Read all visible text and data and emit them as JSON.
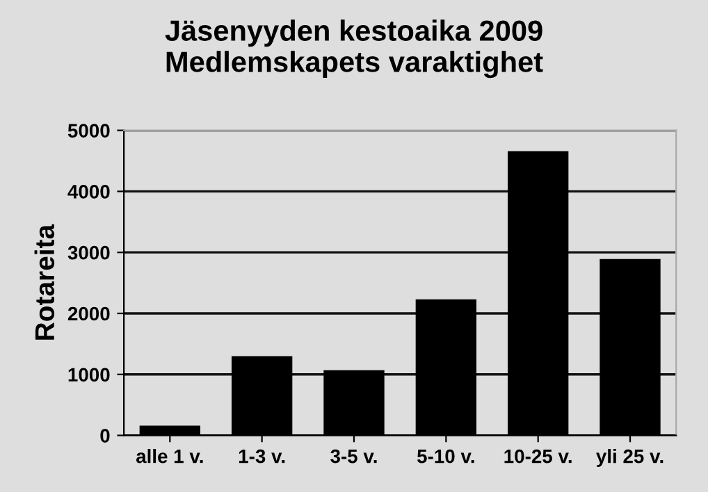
{
  "chart_data": {
    "type": "bar",
    "title": "Jäsenyyden kestoaika 2009\nMedlemskapets varaktighet",
    "ylabel": "Rotareita",
    "categories": [
      "alle 1 v.",
      "1-3 v.",
      "3-5 v.",
      "5-10 v.",
      "10-25 v.",
      "yli 25 v."
    ],
    "values": [
      160,
      1300,
      1070,
      2230,
      4660,
      2890
    ],
    "color": "#000000",
    "ylim": [
      0,
      5000
    ],
    "yticks": [
      0,
      1000,
      2000,
      3000,
      4000,
      5000
    ],
    "grid": "y"
  }
}
